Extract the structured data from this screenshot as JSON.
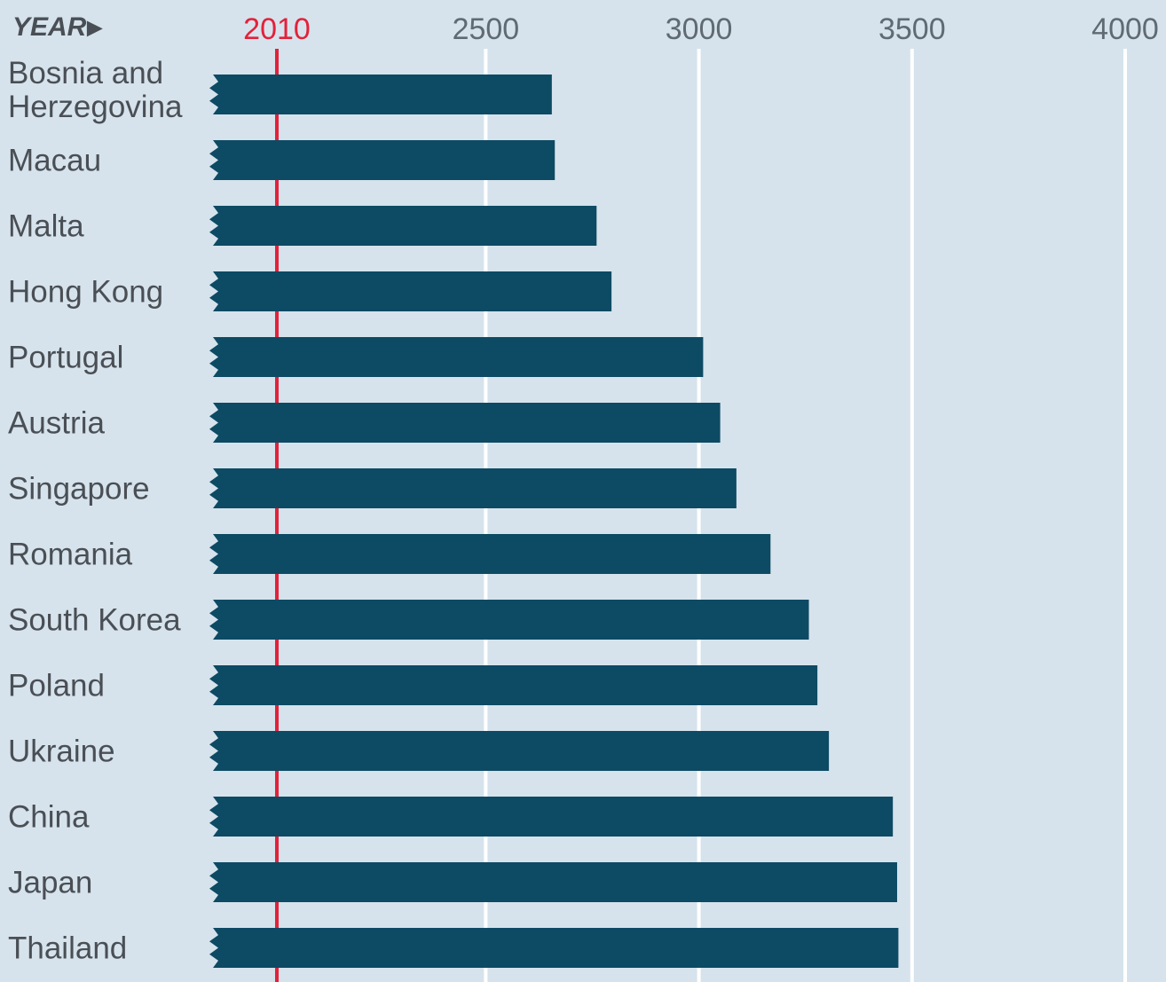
{
  "colors": {
    "background": "#d6e3ec",
    "bar": "#0d4a64",
    "grid": "#ffffff",
    "reference": "#e3213a",
    "text": "#4a4f55"
  },
  "chart_data": {
    "type": "bar",
    "orientation": "horizontal",
    "axis_label": "YEAR",
    "axis_arrow": "►",
    "x_ticks": [
      {
        "value": 2010,
        "label": "2010",
        "highlight": true
      },
      {
        "value": 2500,
        "label": "2500"
      },
      {
        "value": 3000,
        "label": "3000"
      },
      {
        "value": 3500,
        "label": "3500"
      },
      {
        "value": 4000,
        "label": "4000"
      }
    ],
    "xlim": [
      1850,
      4000
    ],
    "reference_line": 2010,
    "bars_truncated_at_start": true,
    "grid": true,
    "categories": [
      "Bosnia and Herzegovina",
      "Macau",
      "Malta",
      "Hong Kong",
      "Portugal",
      "Austria",
      "Singapore",
      "Romania",
      "South Korea",
      "Poland",
      "Ukraine",
      "China",
      "Japan",
      "Thailand"
    ],
    "category_lines": [
      [
        "Bosnia and",
        "Herzegovina"
      ],
      [
        "Macau"
      ],
      [
        "Malta"
      ],
      [
        "Hong Kong"
      ],
      [
        "Portugal"
      ],
      [
        "Austria"
      ],
      [
        "Singapore"
      ],
      [
        "Romania"
      ],
      [
        "South Korea"
      ],
      [
        "Poland"
      ],
      [
        "Ukraine"
      ],
      [
        "China"
      ],
      [
        "Japan"
      ],
      [
        "Thailand"
      ]
    ],
    "values": [
      2655,
      2662,
      2760,
      2795,
      3010,
      3050,
      3088,
      3168,
      3258,
      3278,
      3305,
      3455,
      3465,
      3468
    ]
  }
}
